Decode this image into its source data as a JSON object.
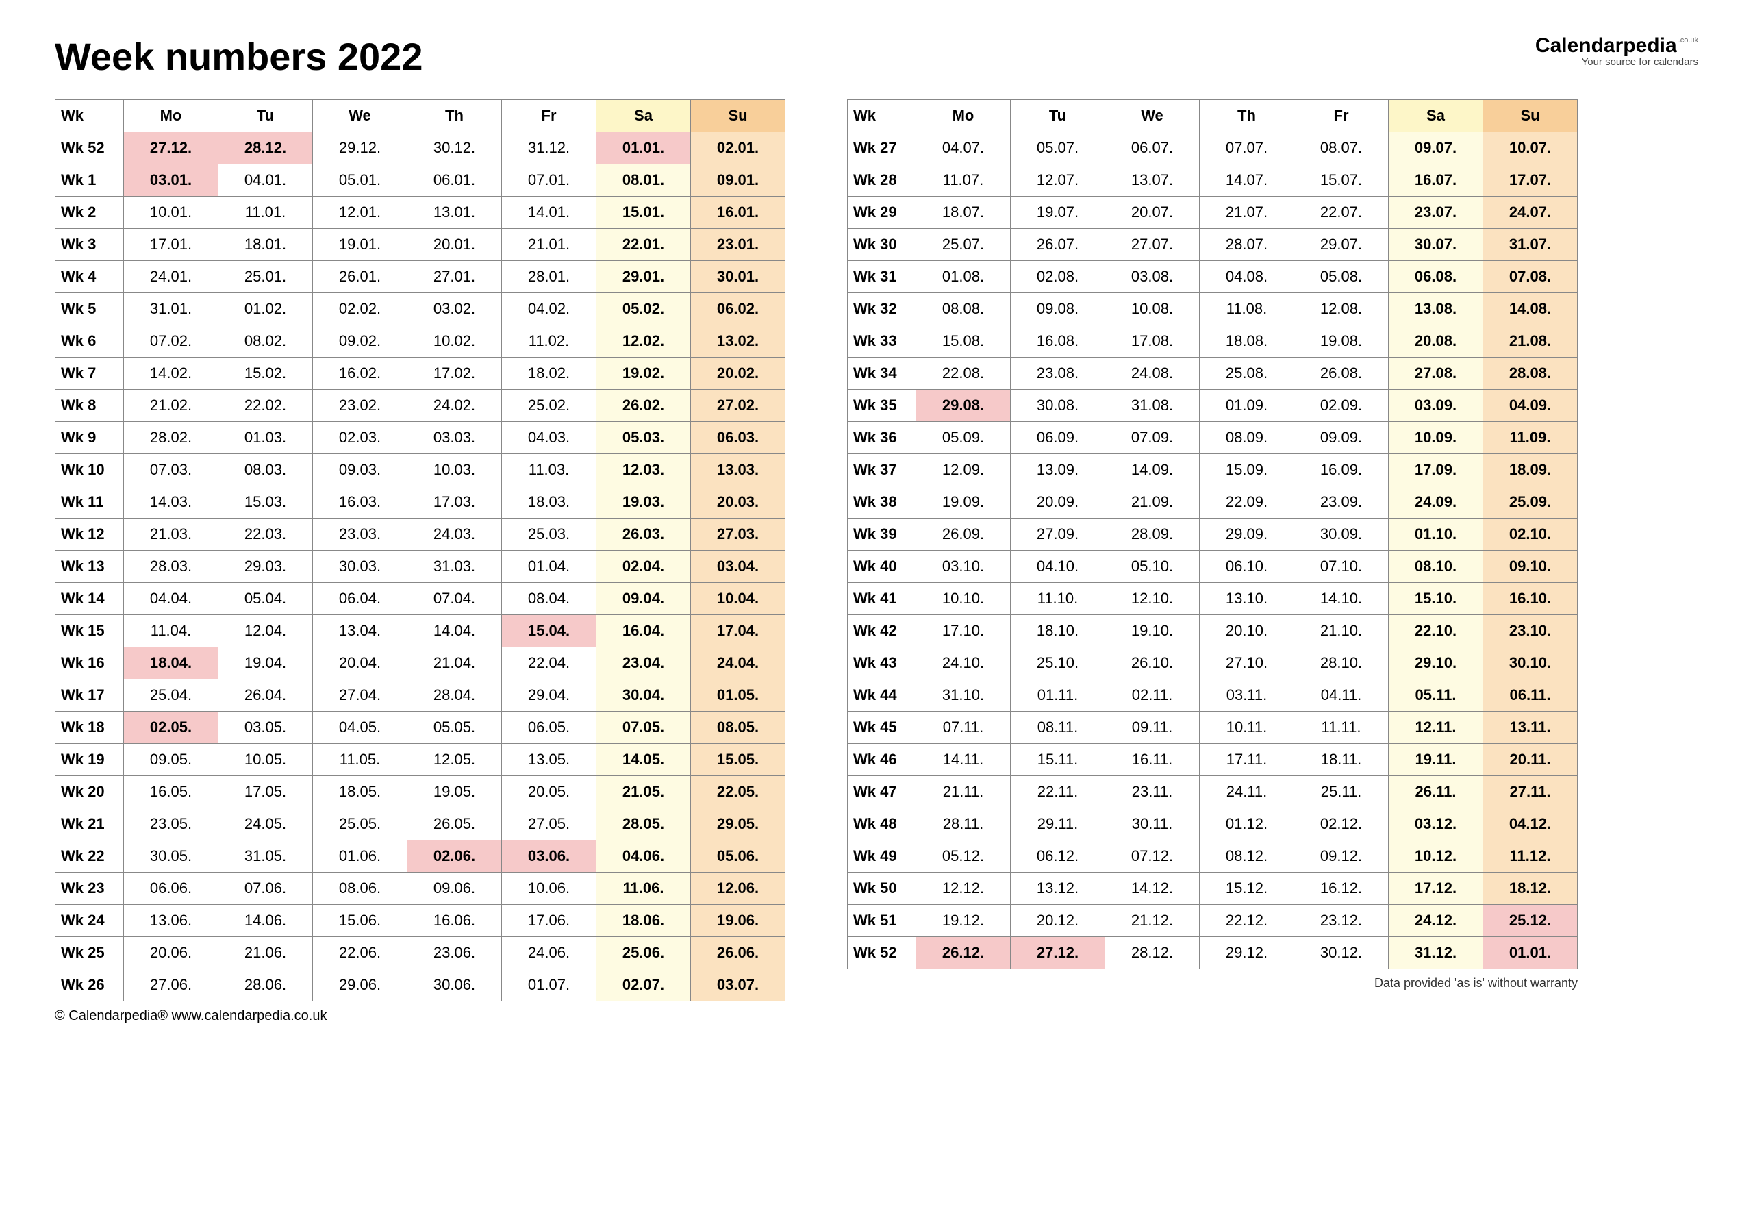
{
  "title": "Week numbers 2022",
  "logo": {
    "main": "Calendarpedia",
    "suffix": ".co.uk",
    "tagline": "Your source for calendars"
  },
  "footer_left": "© Calendarpedia®     www.calendarpedia.co.uk",
  "footer_right": "Data provided 'as is' without warranty",
  "colors": {
    "sat_header_bg": "#fdf6c8",
    "sun_header_bg": "#f8cf9a",
    "sat_bg": "#fefbe2",
    "sun_bg": "#fbe2c0",
    "holiday_bg": "#f6c9c9",
    "border": "#888888",
    "text": "#000000"
  },
  "headers": [
    "Wk",
    "Mo",
    "Tu",
    "We",
    "Th",
    "Fr",
    "Sa",
    "Su"
  ],
  "left_table": [
    {
      "wk": "Wk 52",
      "d": [
        "27.12.",
        "28.12.",
        "29.12.",
        "30.12.",
        "31.12.",
        "01.01.",
        "02.01."
      ],
      "hol": [
        0,
        1,
        5
      ]
    },
    {
      "wk": "Wk 1",
      "d": [
        "03.01.",
        "04.01.",
        "05.01.",
        "06.01.",
        "07.01.",
        "08.01.",
        "09.01."
      ],
      "hol": [
        0
      ]
    },
    {
      "wk": "Wk 2",
      "d": [
        "10.01.",
        "11.01.",
        "12.01.",
        "13.01.",
        "14.01.",
        "15.01.",
        "16.01."
      ],
      "hol": []
    },
    {
      "wk": "Wk 3",
      "d": [
        "17.01.",
        "18.01.",
        "19.01.",
        "20.01.",
        "21.01.",
        "22.01.",
        "23.01."
      ],
      "hol": []
    },
    {
      "wk": "Wk 4",
      "d": [
        "24.01.",
        "25.01.",
        "26.01.",
        "27.01.",
        "28.01.",
        "29.01.",
        "30.01."
      ],
      "hol": []
    },
    {
      "wk": "Wk 5",
      "d": [
        "31.01.",
        "01.02.",
        "02.02.",
        "03.02.",
        "04.02.",
        "05.02.",
        "06.02."
      ],
      "hol": []
    },
    {
      "wk": "Wk 6",
      "d": [
        "07.02.",
        "08.02.",
        "09.02.",
        "10.02.",
        "11.02.",
        "12.02.",
        "13.02."
      ],
      "hol": []
    },
    {
      "wk": "Wk 7",
      "d": [
        "14.02.",
        "15.02.",
        "16.02.",
        "17.02.",
        "18.02.",
        "19.02.",
        "20.02."
      ],
      "hol": []
    },
    {
      "wk": "Wk 8",
      "d": [
        "21.02.",
        "22.02.",
        "23.02.",
        "24.02.",
        "25.02.",
        "26.02.",
        "27.02."
      ],
      "hol": []
    },
    {
      "wk": "Wk 9",
      "d": [
        "28.02.",
        "01.03.",
        "02.03.",
        "03.03.",
        "04.03.",
        "05.03.",
        "06.03."
      ],
      "hol": []
    },
    {
      "wk": "Wk 10",
      "d": [
        "07.03.",
        "08.03.",
        "09.03.",
        "10.03.",
        "11.03.",
        "12.03.",
        "13.03."
      ],
      "hol": []
    },
    {
      "wk": "Wk 11",
      "d": [
        "14.03.",
        "15.03.",
        "16.03.",
        "17.03.",
        "18.03.",
        "19.03.",
        "20.03."
      ],
      "hol": []
    },
    {
      "wk": "Wk 12",
      "d": [
        "21.03.",
        "22.03.",
        "23.03.",
        "24.03.",
        "25.03.",
        "26.03.",
        "27.03."
      ],
      "hol": []
    },
    {
      "wk": "Wk 13",
      "d": [
        "28.03.",
        "29.03.",
        "30.03.",
        "31.03.",
        "01.04.",
        "02.04.",
        "03.04."
      ],
      "hol": []
    },
    {
      "wk": "Wk 14",
      "d": [
        "04.04.",
        "05.04.",
        "06.04.",
        "07.04.",
        "08.04.",
        "09.04.",
        "10.04."
      ],
      "hol": []
    },
    {
      "wk": "Wk 15",
      "d": [
        "11.04.",
        "12.04.",
        "13.04.",
        "14.04.",
        "15.04.",
        "16.04.",
        "17.04."
      ],
      "hol": [
        4
      ]
    },
    {
      "wk": "Wk 16",
      "d": [
        "18.04.",
        "19.04.",
        "20.04.",
        "21.04.",
        "22.04.",
        "23.04.",
        "24.04."
      ],
      "hol": [
        0
      ]
    },
    {
      "wk": "Wk 17",
      "d": [
        "25.04.",
        "26.04.",
        "27.04.",
        "28.04.",
        "29.04.",
        "30.04.",
        "01.05."
      ],
      "hol": []
    },
    {
      "wk": "Wk 18",
      "d": [
        "02.05.",
        "03.05.",
        "04.05.",
        "05.05.",
        "06.05.",
        "07.05.",
        "08.05."
      ],
      "hol": [
        0
      ]
    },
    {
      "wk": "Wk 19",
      "d": [
        "09.05.",
        "10.05.",
        "11.05.",
        "12.05.",
        "13.05.",
        "14.05.",
        "15.05."
      ],
      "hol": []
    },
    {
      "wk": "Wk 20",
      "d": [
        "16.05.",
        "17.05.",
        "18.05.",
        "19.05.",
        "20.05.",
        "21.05.",
        "22.05."
      ],
      "hol": []
    },
    {
      "wk": "Wk 21",
      "d": [
        "23.05.",
        "24.05.",
        "25.05.",
        "26.05.",
        "27.05.",
        "28.05.",
        "29.05."
      ],
      "hol": []
    },
    {
      "wk": "Wk 22",
      "d": [
        "30.05.",
        "31.05.",
        "01.06.",
        "02.06.",
        "03.06.",
        "04.06.",
        "05.06."
      ],
      "hol": [
        3,
        4
      ]
    },
    {
      "wk": "Wk 23",
      "d": [
        "06.06.",
        "07.06.",
        "08.06.",
        "09.06.",
        "10.06.",
        "11.06.",
        "12.06."
      ],
      "hol": []
    },
    {
      "wk": "Wk 24",
      "d": [
        "13.06.",
        "14.06.",
        "15.06.",
        "16.06.",
        "17.06.",
        "18.06.",
        "19.06."
      ],
      "hol": []
    },
    {
      "wk": "Wk 25",
      "d": [
        "20.06.",
        "21.06.",
        "22.06.",
        "23.06.",
        "24.06.",
        "25.06.",
        "26.06."
      ],
      "hol": []
    },
    {
      "wk": "Wk 26",
      "d": [
        "27.06.",
        "28.06.",
        "29.06.",
        "30.06.",
        "01.07.",
        "02.07.",
        "03.07."
      ],
      "hol": []
    }
  ],
  "right_table": [
    {
      "wk": "Wk 27",
      "d": [
        "04.07.",
        "05.07.",
        "06.07.",
        "07.07.",
        "08.07.",
        "09.07.",
        "10.07."
      ],
      "hol": []
    },
    {
      "wk": "Wk 28",
      "d": [
        "11.07.",
        "12.07.",
        "13.07.",
        "14.07.",
        "15.07.",
        "16.07.",
        "17.07."
      ],
      "hol": []
    },
    {
      "wk": "Wk 29",
      "d": [
        "18.07.",
        "19.07.",
        "20.07.",
        "21.07.",
        "22.07.",
        "23.07.",
        "24.07."
      ],
      "hol": []
    },
    {
      "wk": "Wk 30",
      "d": [
        "25.07.",
        "26.07.",
        "27.07.",
        "28.07.",
        "29.07.",
        "30.07.",
        "31.07."
      ],
      "hol": []
    },
    {
      "wk": "Wk 31",
      "d": [
        "01.08.",
        "02.08.",
        "03.08.",
        "04.08.",
        "05.08.",
        "06.08.",
        "07.08."
      ],
      "hol": []
    },
    {
      "wk": "Wk 32",
      "d": [
        "08.08.",
        "09.08.",
        "10.08.",
        "11.08.",
        "12.08.",
        "13.08.",
        "14.08."
      ],
      "hol": []
    },
    {
      "wk": "Wk 33",
      "d": [
        "15.08.",
        "16.08.",
        "17.08.",
        "18.08.",
        "19.08.",
        "20.08.",
        "21.08."
      ],
      "hol": []
    },
    {
      "wk": "Wk 34",
      "d": [
        "22.08.",
        "23.08.",
        "24.08.",
        "25.08.",
        "26.08.",
        "27.08.",
        "28.08."
      ],
      "hol": []
    },
    {
      "wk": "Wk 35",
      "d": [
        "29.08.",
        "30.08.",
        "31.08.",
        "01.09.",
        "02.09.",
        "03.09.",
        "04.09."
      ],
      "hol": [
        0
      ]
    },
    {
      "wk": "Wk 36",
      "d": [
        "05.09.",
        "06.09.",
        "07.09.",
        "08.09.",
        "09.09.",
        "10.09.",
        "11.09."
      ],
      "hol": []
    },
    {
      "wk": "Wk 37",
      "d": [
        "12.09.",
        "13.09.",
        "14.09.",
        "15.09.",
        "16.09.",
        "17.09.",
        "18.09."
      ],
      "hol": []
    },
    {
      "wk": "Wk 38",
      "d": [
        "19.09.",
        "20.09.",
        "21.09.",
        "22.09.",
        "23.09.",
        "24.09.",
        "25.09."
      ],
      "hol": []
    },
    {
      "wk": "Wk 39",
      "d": [
        "26.09.",
        "27.09.",
        "28.09.",
        "29.09.",
        "30.09.",
        "01.10.",
        "02.10."
      ],
      "hol": []
    },
    {
      "wk": "Wk 40",
      "d": [
        "03.10.",
        "04.10.",
        "05.10.",
        "06.10.",
        "07.10.",
        "08.10.",
        "09.10."
      ],
      "hol": []
    },
    {
      "wk": "Wk 41",
      "d": [
        "10.10.",
        "11.10.",
        "12.10.",
        "13.10.",
        "14.10.",
        "15.10.",
        "16.10."
      ],
      "hol": []
    },
    {
      "wk": "Wk 42",
      "d": [
        "17.10.",
        "18.10.",
        "19.10.",
        "20.10.",
        "21.10.",
        "22.10.",
        "23.10."
      ],
      "hol": []
    },
    {
      "wk": "Wk 43",
      "d": [
        "24.10.",
        "25.10.",
        "26.10.",
        "27.10.",
        "28.10.",
        "29.10.",
        "30.10."
      ],
      "hol": []
    },
    {
      "wk": "Wk 44",
      "d": [
        "31.10.",
        "01.11.",
        "02.11.",
        "03.11.",
        "04.11.",
        "05.11.",
        "06.11."
      ],
      "hol": []
    },
    {
      "wk": "Wk 45",
      "d": [
        "07.11.",
        "08.11.",
        "09.11.",
        "10.11.",
        "11.11.",
        "12.11.",
        "13.11."
      ],
      "hol": []
    },
    {
      "wk": "Wk 46",
      "d": [
        "14.11.",
        "15.11.",
        "16.11.",
        "17.11.",
        "18.11.",
        "19.11.",
        "20.11."
      ],
      "hol": []
    },
    {
      "wk": "Wk 47",
      "d": [
        "21.11.",
        "22.11.",
        "23.11.",
        "24.11.",
        "25.11.",
        "26.11.",
        "27.11."
      ],
      "hol": []
    },
    {
      "wk": "Wk 48",
      "d": [
        "28.11.",
        "29.11.",
        "30.11.",
        "01.12.",
        "02.12.",
        "03.12.",
        "04.12."
      ],
      "hol": []
    },
    {
      "wk": "Wk 49",
      "d": [
        "05.12.",
        "06.12.",
        "07.12.",
        "08.12.",
        "09.12.",
        "10.12.",
        "11.12."
      ],
      "hol": []
    },
    {
      "wk": "Wk 50",
      "d": [
        "12.12.",
        "13.12.",
        "14.12.",
        "15.12.",
        "16.12.",
        "17.12.",
        "18.12."
      ],
      "hol": []
    },
    {
      "wk": "Wk 51",
      "d": [
        "19.12.",
        "20.12.",
        "21.12.",
        "22.12.",
        "23.12.",
        "24.12.",
        "25.12."
      ],
      "hol": [
        6
      ]
    },
    {
      "wk": "Wk 52",
      "d": [
        "26.12.",
        "27.12.",
        "28.12.",
        "29.12.",
        "30.12.",
        "31.12.",
        "01.01."
      ],
      "hol": [
        0,
        1,
        6
      ]
    }
  ]
}
